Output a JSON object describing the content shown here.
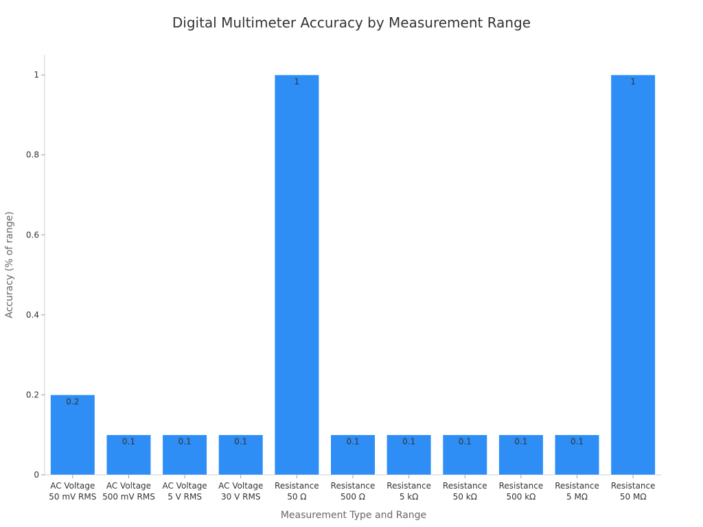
{
  "chart_data": {
    "type": "bar",
    "title": "Digital Multimeter Accuracy by Measurement Range",
    "xlabel": "Measurement Type and Range",
    "ylabel": "Accuracy (% of range)",
    "ylim": [
      0,
      1.05
    ],
    "yticks": [
      0,
      0.2,
      0.4,
      0.6,
      0.8,
      1
    ],
    "ytick_labels": [
      "0",
      "0.2",
      "0.4",
      "0.6",
      "0.8",
      "1"
    ],
    "categories": [
      [
        "AC Voltage",
        "50 mV RMS"
      ],
      [
        "AC Voltage",
        "500 mV RMS"
      ],
      [
        "AC Voltage",
        "5 V RMS"
      ],
      [
        "AC Voltage",
        "30 V RMS"
      ],
      [
        "Resistance",
        "50 Ω"
      ],
      [
        "Resistance",
        "500 Ω"
      ],
      [
        "Resistance",
        "5 kΩ"
      ],
      [
        "Resistance",
        "50 kΩ"
      ],
      [
        "Resistance",
        "500 kΩ"
      ],
      [
        "Resistance",
        "5 MΩ"
      ],
      [
        "Resistance",
        "50 MΩ"
      ]
    ],
    "values": [
      0.2,
      0.1,
      0.1,
      0.1,
      1,
      0.1,
      0.1,
      0.1,
      0.1,
      0.1,
      1
    ],
    "value_labels": [
      "0.2",
      "0.1",
      "0.1",
      "0.1",
      "1",
      "0.1",
      "0.1",
      "0.1",
      "0.1",
      "0.1",
      "1"
    ],
    "bar_color": "#2e8ef5",
    "grid": false,
    "legend": "none"
  }
}
